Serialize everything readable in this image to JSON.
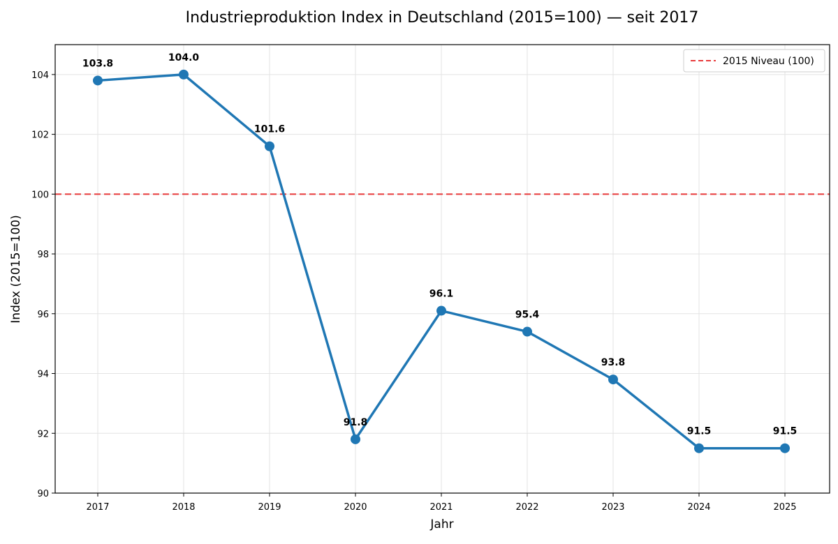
{
  "chart_data": {
    "type": "line",
    "title": "Industrieproduktion Index in Deutschland (2015=100) — seit 2017",
    "xlabel": "Jahr",
    "ylabel": "Index (2015=100)",
    "x": [
      "2017",
      "2018",
      "2019",
      "2020",
      "2021",
      "2022",
      "2023",
      "2024",
      "2025"
    ],
    "series": [
      {
        "values": [
          103.8,
          104.0,
          101.6,
          91.8,
          96.1,
          95.4,
          93.8,
          91.5,
          91.5
        ],
        "data_labels": [
          "103.8",
          "104.0",
          "101.6",
          "91.8",
          "96.1",
          "95.4",
          "93.8",
          "91.5",
          "91.5"
        ],
        "color": "#1f77b4"
      }
    ],
    "reference_line": {
      "name": "2015 Niveau (100)",
      "value": 100,
      "color": "#e8393a",
      "style": "dashed"
    },
    "ylim": [
      90,
      105
    ],
    "yticks": [
      "90",
      "92",
      "94",
      "96",
      "98",
      "100",
      "102",
      "104"
    ],
    "grid": true,
    "legend_position": "top-right"
  }
}
